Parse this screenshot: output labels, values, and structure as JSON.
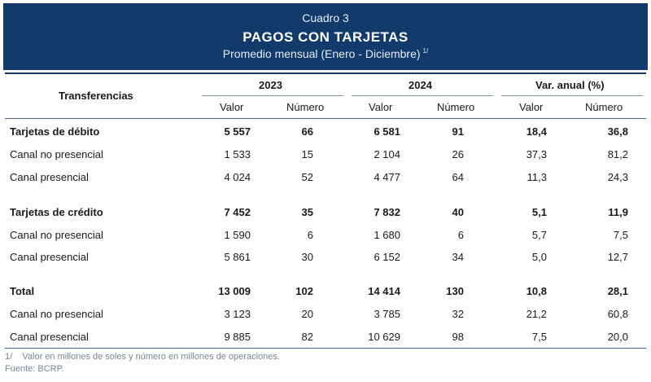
{
  "header": {
    "caption": "Cuadro 3",
    "title": "PAGOS CON TARJETAS",
    "subtitle": "Promedio mensual (Enero - Diciembre)",
    "subtitle_note": "1/"
  },
  "columns": {
    "row_header": "Transferencias",
    "group_2023": "2023",
    "group_2024": "2024",
    "group_var": "Var. anual (%)",
    "valor": "Valor",
    "numero": "Número"
  },
  "rows": [
    {
      "label": "Tarjetas de débito",
      "v2023": "5 557",
      "n2023": "66",
      "v2024": "6 581",
      "n2024": "91",
      "vvar": "18,4",
      "nvar": "36,8"
    },
    {
      "label": "Canal no presencial",
      "v2023": "1 533",
      "n2023": "15",
      "v2024": "2 104",
      "n2024": "26",
      "vvar": "37,3",
      "nvar": "81,2"
    },
    {
      "label": "Canal presencial",
      "v2023": "4 024",
      "n2023": "52",
      "v2024": "4 477",
      "n2024": "64",
      "vvar": "11,3",
      "nvar": "24,3"
    },
    {
      "label": "Tarjetas de crédito",
      "v2023": "7 452",
      "n2023": "35",
      "v2024": "7 832",
      "n2024": "40",
      "vvar": "5,1",
      "nvar": "11,9"
    },
    {
      "label": "Canal no presencial",
      "v2023": "1 590",
      "n2023": "6",
      "v2024": "1 680",
      "n2024": "6",
      "vvar": "5,7",
      "nvar": "7,5"
    },
    {
      "label": "Canal presencial",
      "v2023": "5 861",
      "n2023": "30",
      "v2024": "6 152",
      "n2024": "34",
      "vvar": "5,0",
      "nvar": "12,7"
    },
    {
      "label": "Total",
      "v2023": "13 009",
      "n2023": "102",
      "v2024": "14 414",
      "n2024": "130",
      "vvar": "10,8",
      "nvar": "28,1"
    },
    {
      "label": "Canal no presencial",
      "v2023": "3 123",
      "n2023": "20",
      "v2024": "3 785",
      "n2024": "32",
      "vvar": "21,2",
      "nvar": "60,8"
    },
    {
      "label": "Canal presencial",
      "v2023": "9 885",
      "n2023": "82",
      "v2024": "10 629",
      "n2024": "98",
      "vvar": "7,5",
      "nvar": "20,0"
    }
  ],
  "footer": {
    "note": "1/    Valor en millones de soles y número en millones de operaciones.",
    "source": "Fuente: BCRP."
  }
}
